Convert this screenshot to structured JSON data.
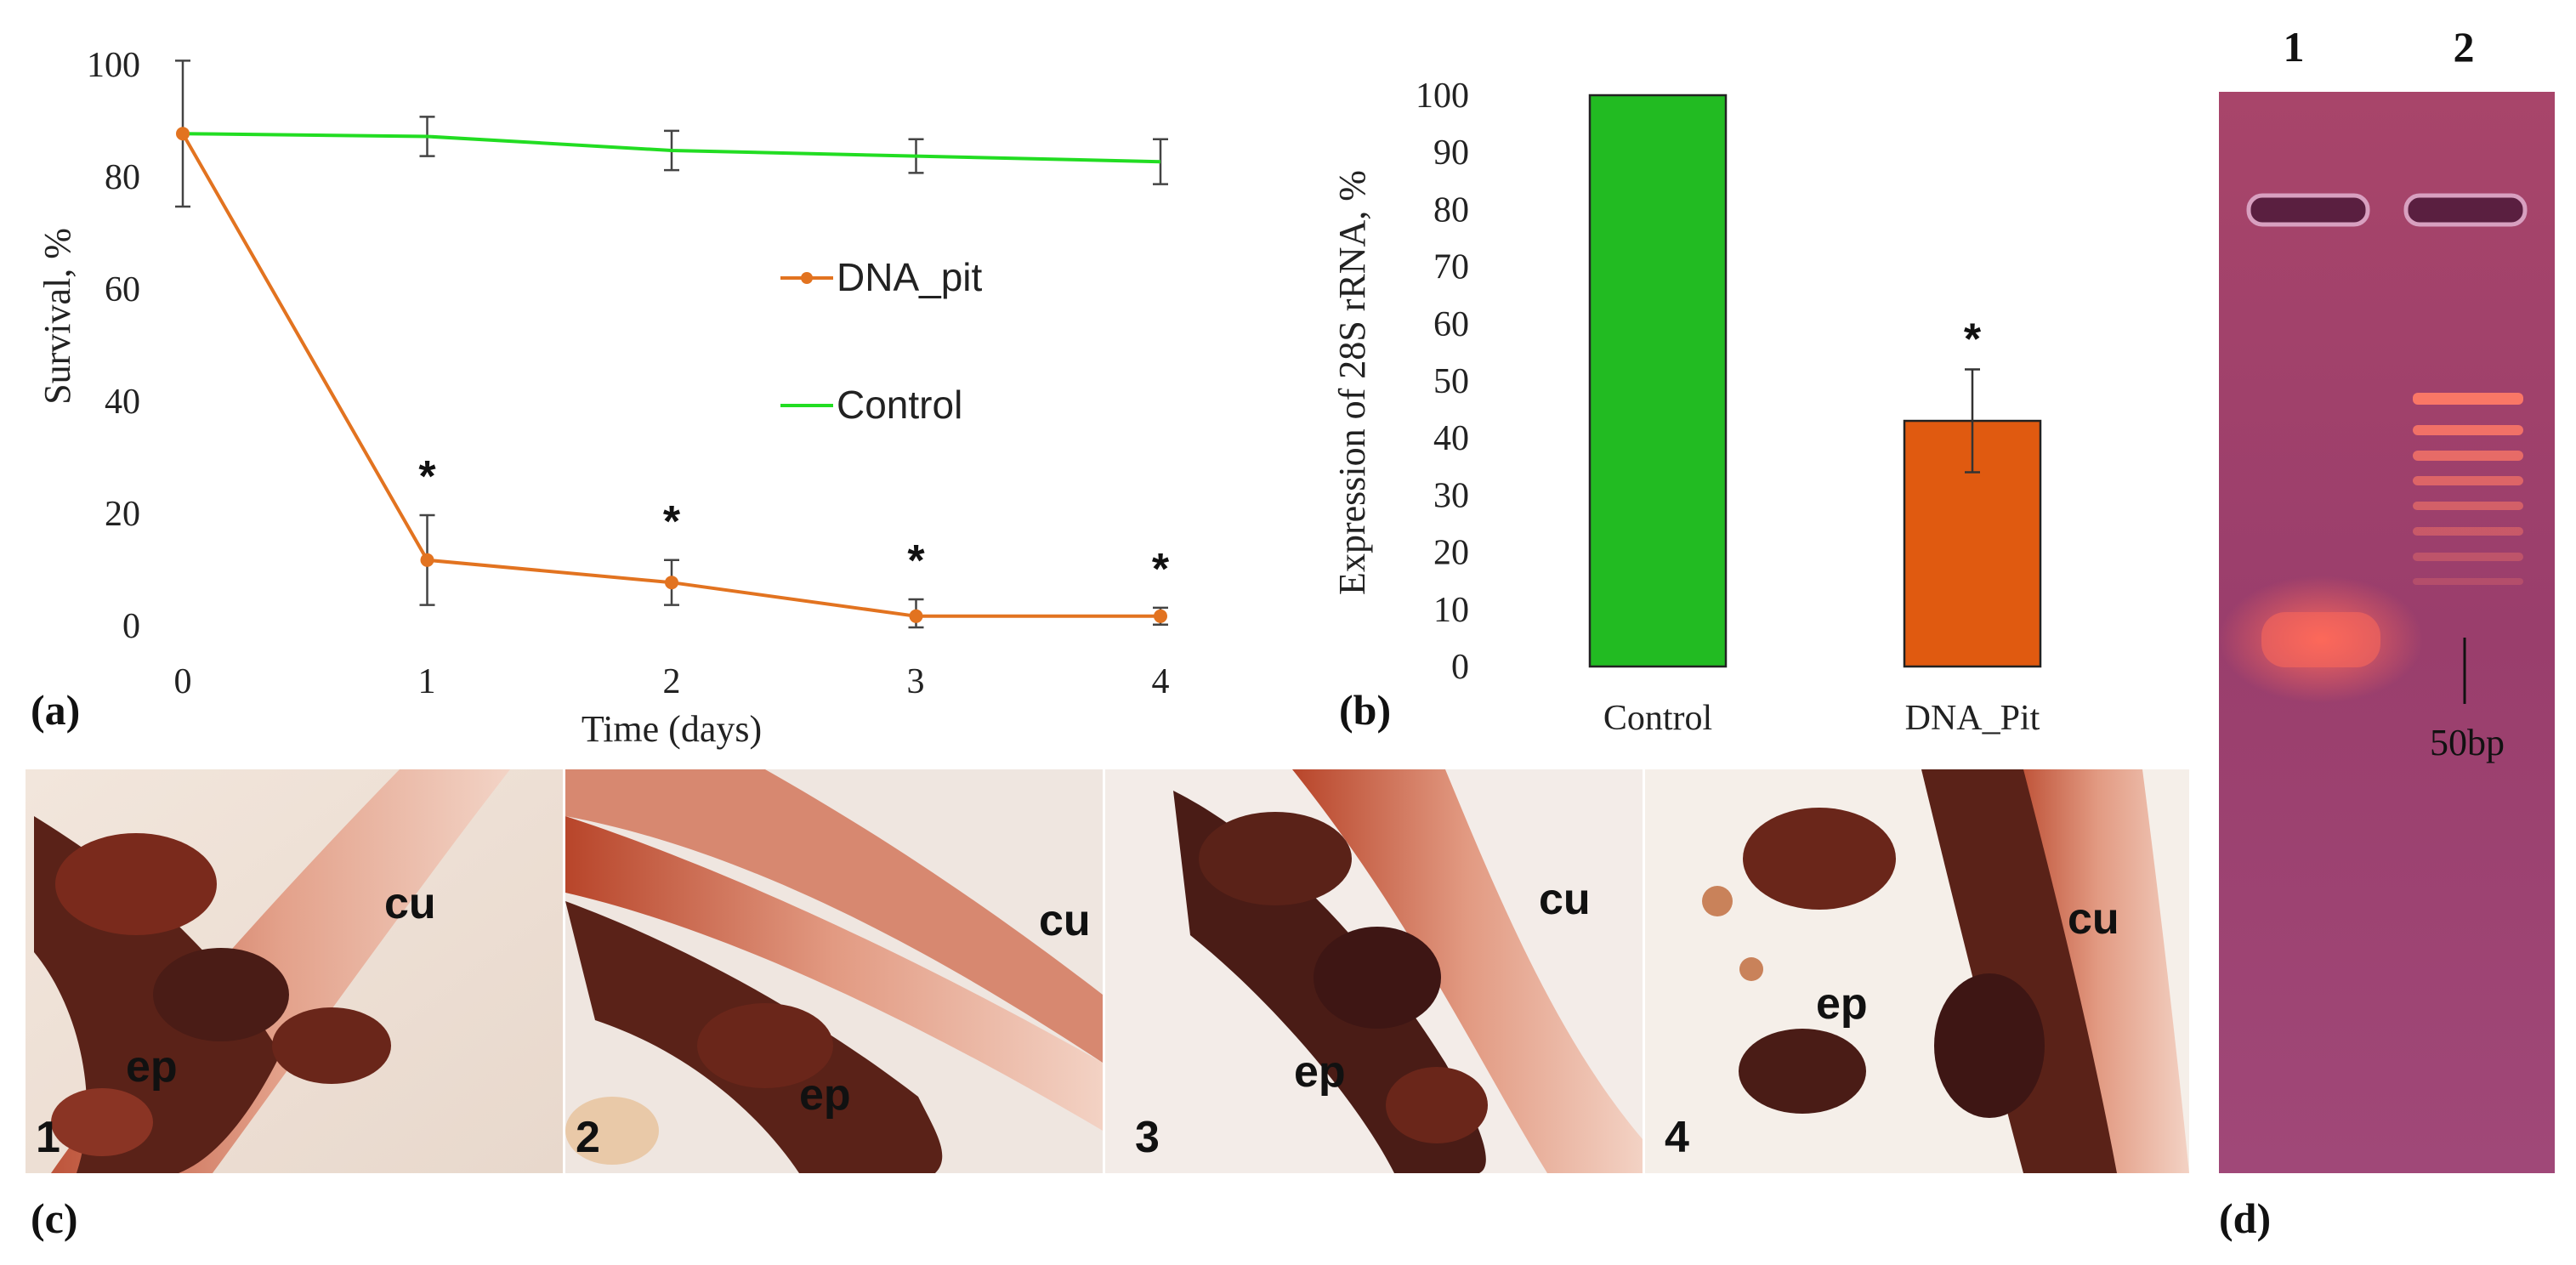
{
  "colors": {
    "control": "#22dd22",
    "dna_pit": "#e27320",
    "bar_control": "#22bb22",
    "bar_dna": "#e05a10"
  },
  "panel_labels": {
    "a": "(a)",
    "b": "(b)",
    "c": "(c)",
    "d": "(d)"
  },
  "chart_data": [
    {
      "type": "line",
      "panel": "(a)",
      "xlabel": "Time (days)",
      "ylabel": "Survival, %",
      "x": [
        0,
        1,
        2,
        3,
        4
      ],
      "xlim": [
        0,
        4
      ],
      "ylim": [
        0,
        100
      ],
      "x_ticks": [
        "0",
        "1",
        "2",
        "3",
        "4"
      ],
      "y_ticks": [
        "0",
        "20",
        "40",
        "60",
        "80",
        "100"
      ],
      "grid": false,
      "legend_placement": "center-right",
      "series": [
        {
          "name": "DNA_pit",
          "color": "#e27320",
          "marker": "circle",
          "values": [
            88,
            12,
            8,
            2,
            2
          ],
          "errors": [
            0,
            8,
            4,
            3,
            1.5
          ]
        },
        {
          "name": "Control",
          "color": "#22dd22",
          "marker": "none",
          "values": [
            88,
            87.5,
            85,
            84,
            83
          ],
          "errors": [
            13,
            3.5,
            3.5,
            3,
            4
          ]
        }
      ],
      "significance": [
        {
          "x": 1,
          "label": "*"
        },
        {
          "x": 2,
          "label": "*"
        },
        {
          "x": 3,
          "label": "*"
        },
        {
          "x": 4,
          "label": "*"
        }
      ]
    },
    {
      "type": "bar",
      "panel": "(b)",
      "ylabel": "Expression of 28S rRNA, %",
      "categories": [
        "Control",
        "DNA_Pit"
      ],
      "values": [
        100,
        43
      ],
      "errors": [
        0,
        9
      ],
      "ylim": [
        0,
        100
      ],
      "y_ticks": [
        "0",
        "10",
        "20",
        "30",
        "40",
        "50",
        "60",
        "70",
        "80",
        "90",
        "100"
      ],
      "bar_colors": [
        "#22bb22",
        "#e05a10"
      ],
      "significance": [
        {
          "category": "DNA_Pit",
          "label": "*"
        }
      ]
    }
  ],
  "histology": {
    "panels": [
      {
        "number": "1",
        "cu": "cu",
        "ep": "ep"
      },
      {
        "number": "2",
        "cu": "cu",
        "ep": "ep"
      },
      {
        "number": "3",
        "cu": "cu",
        "ep": "ep"
      },
      {
        "number": "4",
        "cu": "cu",
        "ep": "ep"
      }
    ]
  },
  "gel": {
    "lanes": [
      "1",
      "2"
    ],
    "marker_label": "50bp"
  }
}
